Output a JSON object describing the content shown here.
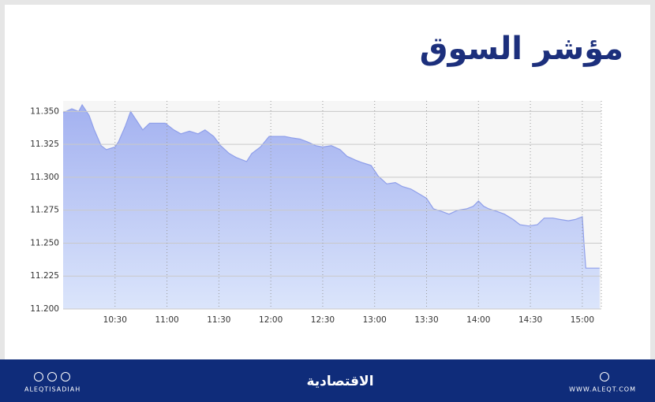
{
  "chart_data": {
    "type": "line",
    "title": "مؤشر السوق",
    "x": [
      600,
      605,
      609,
      611,
      615,
      618,
      622,
      625,
      630,
      632,
      636,
      639,
      642,
      646,
      650,
      655,
      659,
      664,
      668,
      673,
      678,
      682,
      687,
      691,
      696,
      700,
      706,
      709,
      714,
      719,
      723,
      728,
      732,
      737,
      741,
      746,
      750,
      755,
      760,
      764,
      769,
      773,
      778,
      782,
      787,
      792,
      796,
      801,
      805,
      810,
      814,
      819,
      823,
      828,
      833,
      837,
      840,
      843,
      846,
      851,
      855,
      860,
      864,
      869,
      874,
      878,
      883,
      887,
      892,
      896,
      900,
      901,
      902,
      910
    ],
    "values": [
      11.349,
      11.352,
      11.35,
      11.355,
      11.347,
      11.336,
      11.324,
      11.321,
      11.323,
      11.327,
      11.339,
      11.35,
      11.344,
      11.336,
      11.341,
      11.341,
      11.341,
      11.336,
      11.333,
      11.335,
      11.333,
      11.336,
      11.331,
      11.324,
      11.318,
      11.315,
      11.312,
      11.318,
      11.323,
      11.331,
      11.331,
      11.331,
      11.33,
      11.329,
      11.327,
      11.324,
      11.323,
      11.324,
      11.321,
      11.316,
      11.313,
      11.311,
      11.309,
      11.301,
      11.295,
      11.296,
      11.293,
      11.291,
      11.288,
      11.284,
      11.276,
      11.274,
      11.272,
      11.275,
      11.276,
      11.278,
      11.282,
      11.278,
      11.276,
      11.274,
      11.272,
      11.268,
      11.264,
      11.263,
      11.264,
      11.269,
      11.269,
      11.268,
      11.267,
      11.268,
      11.27,
      11.249,
      11.231,
      11.231
    ],
    "color": "#8f9fea",
    "xlim": [
      600,
      911
    ],
    "xticks": [
      {
        "value": 630,
        "label": "10:30"
      },
      {
        "value": 660,
        "label": "11:00"
      },
      {
        "value": 690,
        "label": "11:30"
      },
      {
        "value": 720,
        "label": "12:00"
      },
      {
        "value": 750,
        "label": "12:30"
      },
      {
        "value": 780,
        "label": "13:00"
      },
      {
        "value": 810,
        "label": "13:30"
      },
      {
        "value": 840,
        "label": "14:00"
      },
      {
        "value": 870,
        "label": "14:30"
      },
      {
        "value": 900,
        "label": "15:00"
      }
    ],
    "ylim": [
      11.2,
      11.358
    ],
    "yticks": [
      {
        "value": 11.2,
        "label": "11.200"
      },
      {
        "value": 11.225,
        "label": "11.225"
      },
      {
        "value": 11.25,
        "label": "11.250"
      },
      {
        "value": 11.275,
        "label": "11.275"
      },
      {
        "value": 11.3,
        "label": "11.300"
      },
      {
        "value": 11.325,
        "label": "11.325"
      },
      {
        "value": 11.35,
        "label": "11.350"
      }
    ],
    "grid": true
  },
  "footer": {
    "handle": "ALEQTISADIAH",
    "logo": "الاقتصادية",
    "website": "WWW.ALEQT.COM"
  }
}
